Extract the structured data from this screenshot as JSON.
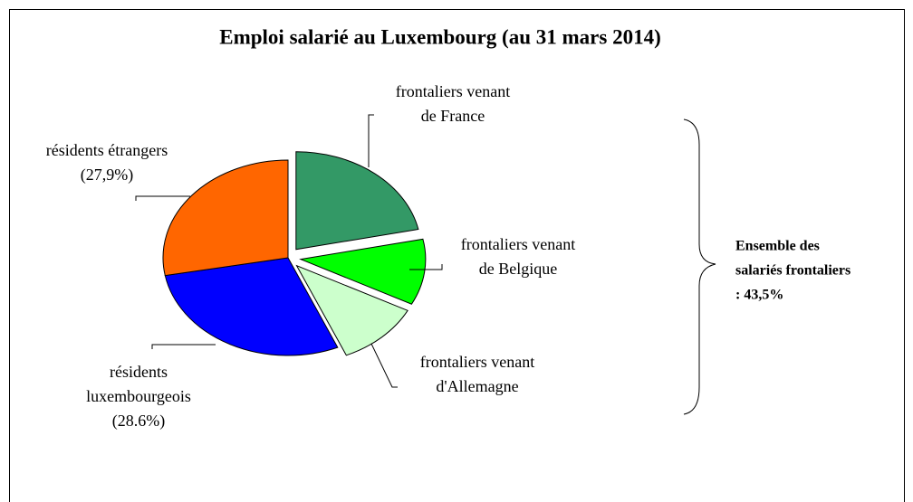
{
  "chart_data": {
    "type": "pie",
    "title": "Emploi salarié au Luxembourg (au 31 mars 2014)",
    "categories": [
      [
        "frontaliers venant",
        "de France"
      ],
      [
        "frontaliers venant",
        "de Belgique"
      ],
      [
        "frontaliers venant",
        "d'Allemagne"
      ],
      [
        "résidents",
        "luxembourgeois"
      ],
      [
        "résidents étrangers"
      ]
    ],
    "values": [
      21.7,
      10.9,
      10.9,
      28.6,
      27.9
    ],
    "value_labels": [
      null,
      null,
      null,
      "(28.6%)",
      "(27,9%)"
    ],
    "colors": [
      "#339966",
      "#00ff00",
      "#ccffcc",
      "#0000ff",
      "#ff6600"
    ],
    "exploded": [
      true,
      true,
      true,
      false,
      false
    ],
    "annotation": [
      "Ensemble des",
      "salariés frontaliers",
      ": 43,5%"
    ]
  }
}
